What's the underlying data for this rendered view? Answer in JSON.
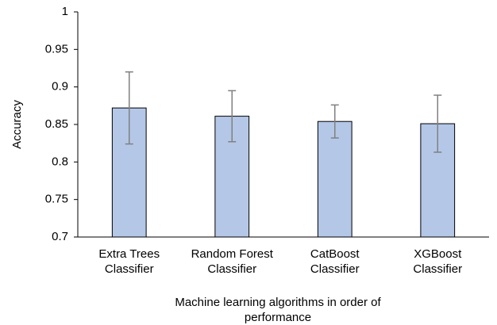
{
  "chart_data": {
    "type": "bar",
    "y_label": "Accuracy",
    "x_label": "Machine learning algorithms in order of performance",
    "categories": [
      "Extra Trees Classifier",
      "Random Forest Classifier",
      "CatBoost Classifier",
      "XGBoost Classifier"
    ],
    "values": [
      0.872,
      0.861,
      0.854,
      0.851
    ],
    "errors": [
      0.048,
      0.034,
      0.022,
      0.038
    ],
    "color": "#b4c7e7",
    "error_color": "#808080",
    "ylim": [
      0.7,
      1
    ],
    "yticks": [
      0.7,
      0.75,
      0.8,
      0.85,
      0.9,
      0.95,
      1
    ]
  }
}
